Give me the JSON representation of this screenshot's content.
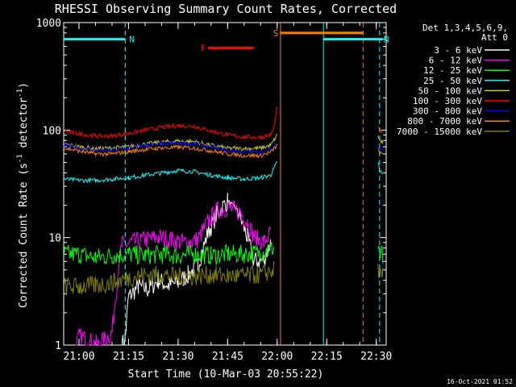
{
  "chart_data": {
    "type": "line",
    "title": "RHESSI Observing Summary Count Rates, Corrected",
    "ylabel": "Corrected Count Rate (s",
    "ylabel_sup1": "-1",
    "ylabel_mid": " detector",
    "ylabel_sup2": "-1",
    "ylabel_end": ")",
    "xlabel": "Start Time (10-Mar-03 20:55:22)",
    "date_stamp": "16-Oct-2021 01:52",
    "yscale": "log",
    "ylim": [
      1,
      1000
    ],
    "xlim": [
      "20:55:22",
      "22:33:00"
    ],
    "y_ticks": [
      {
        "value": 1,
        "label": "1"
      },
      {
        "value": 10,
        "label": "10"
      },
      {
        "value": 100,
        "label": "100"
      },
      {
        "value": 1000,
        "label": "1000"
      }
    ],
    "x_ticks": [
      {
        "value": "21:00",
        "label": "21:00"
      },
      {
        "value": "21:15",
        "label": "21:15"
      },
      {
        "value": "21:30",
        "label": "21:30"
      },
      {
        "value": "21:45",
        "label": "21:45"
      },
      {
        "value": "22:00",
        "label": "22:00"
      },
      {
        "value": "22:15",
        "label": "22:15"
      },
      {
        "value": "22:30",
        "label": "22:30"
      }
    ],
    "legend": {
      "header1": "Det 1,3,4,5,6,9,",
      "header2": "Att 0",
      "placement": "right"
    },
    "series": [
      {
        "name": "3 - 6 keV",
        "color": "#ffffff",
        "points": [
          [
            "21:13",
            1
          ],
          [
            "21:14",
            1.2
          ],
          [
            "21:15",
            2.8
          ],
          [
            "21:18",
            3.5
          ],
          [
            "21:21",
            3.3
          ],
          [
            "21:24",
            4.0
          ],
          [
            "21:27",
            3.6
          ],
          [
            "21:30",
            3.8
          ],
          [
            "21:33",
            4.5
          ],
          [
            "21:36",
            5.5
          ],
          [
            "21:39",
            11
          ],
          [
            "21:42",
            17
          ],
          [
            "21:45",
            22
          ],
          [
            "21:48",
            18
          ],
          [
            "21:51",
            10
          ],
          [
            "21:53",
            6
          ],
          [
            "21:56",
            6.2
          ],
          [
            "21:58",
            9
          ]
        ]
      },
      {
        "name": "6 - 12 keV",
        "color": "#ff00ff",
        "points": [
          [
            "20:59",
            1
          ],
          [
            "21:00",
            1.2
          ],
          [
            "21:06",
            1
          ],
          [
            "21:10",
            1.3
          ],
          [
            "21:12",
            5.5
          ],
          [
            "21:13",
            8.5
          ],
          [
            "21:16",
            9
          ],
          [
            "21:20",
            9.5
          ],
          [
            "21:24",
            10
          ],
          [
            "21:28",
            9.5
          ],
          [
            "21:32",
            9
          ],
          [
            "21:36",
            9.5
          ],
          [
            "21:39",
            14
          ],
          [
            "21:42",
            18
          ],
          [
            "21:45",
            19
          ],
          [
            "21:47",
            18
          ],
          [
            "21:49",
            17
          ],
          [
            "21:51",
            14
          ],
          [
            "21:53",
            10
          ],
          [
            "21:56",
            9
          ],
          [
            "21:58",
            11
          ]
        ]
      },
      {
        "name": "12 - 25 keV",
        "color": "#00ff00",
        "points": [
          [
            "20:55:30",
            7
          ],
          [
            "21:00",
            7
          ],
          [
            "21:05",
            6.5
          ],
          [
            "21:10",
            6.8
          ],
          [
            "21:15",
            7
          ],
          [
            "21:20",
            6.8
          ],
          [
            "21:25",
            7
          ],
          [
            "21:30",
            6.8
          ],
          [
            "21:35",
            7
          ],
          [
            "21:40",
            6.8
          ],
          [
            "21:45",
            7
          ],
          [
            "21:50",
            7
          ],
          [
            "21:55",
            7.2
          ],
          [
            "21:59",
            8
          ]
        ]
      },
      {
        "name": "25 - 50 keV",
        "color": "#00ffff",
        "points": [
          [
            "20:55:30",
            35
          ],
          [
            "21:00",
            34
          ],
          [
            "21:05",
            34
          ],
          [
            "21:10",
            35
          ],
          [
            "21:15",
            36
          ],
          [
            "21:20",
            38
          ],
          [
            "21:25",
            40
          ],
          [
            "21:30",
            42
          ],
          [
            "21:35",
            41
          ],
          [
            "21:40",
            38
          ],
          [
            "21:45",
            36
          ],
          [
            "21:50",
            35
          ],
          [
            "21:55",
            36
          ],
          [
            "21:58",
            38
          ],
          [
            "22:00",
            50
          ]
        ]
      },
      {
        "name": "50 - 100 keV",
        "color": "#d0d000",
        "points": [
          [
            "20:55:30",
            74
          ],
          [
            "21:00",
            70
          ],
          [
            "21:05",
            67
          ],
          [
            "21:10",
            68
          ],
          [
            "21:15",
            70
          ],
          [
            "21:20",
            74
          ],
          [
            "21:25",
            77
          ],
          [
            "21:30",
            79
          ],
          [
            "21:35",
            78
          ],
          [
            "21:40",
            72
          ],
          [
            "21:45",
            68
          ],
          [
            "21:50",
            67
          ],
          [
            "21:55",
            68
          ],
          [
            "21:58",
            72
          ],
          [
            "22:00",
            90
          ]
        ]
      },
      {
        "name": "100 - 300 keV",
        "color": "#ff0000",
        "points": [
          [
            "20:55:30",
            98
          ],
          [
            "21:00",
            92
          ],
          [
            "21:05",
            88
          ],
          [
            "21:10",
            88
          ],
          [
            "21:15",
            93
          ],
          [
            "21:20",
            100
          ],
          [
            "21:25",
            106
          ],
          [
            "21:30",
            110
          ],
          [
            "21:35",
            108
          ],
          [
            "21:40",
            98
          ],
          [
            "21:45",
            90
          ],
          [
            "21:50",
            86
          ],
          [
            "21:55",
            86
          ],
          [
            "21:58",
            90
          ],
          [
            "21:59",
            105
          ],
          [
            "22:00",
            160
          ]
        ]
      },
      {
        "name": "300 - 800 keV",
        "color": "#0000ff",
        "points": [
          [
            "20:55:30",
            72
          ],
          [
            "21:00",
            68
          ],
          [
            "21:05",
            65
          ],
          [
            "21:10",
            65
          ],
          [
            "21:15",
            68
          ],
          [
            "21:20",
            72
          ],
          [
            "21:25",
            74
          ],
          [
            "21:30",
            76
          ],
          [
            "21:35",
            75
          ],
          [
            "21:40",
            70
          ],
          [
            "21:45",
            65
          ],
          [
            "21:50",
            63
          ],
          [
            "21:55",
            63
          ],
          [
            "21:58",
            66
          ],
          [
            "22:00",
            75
          ]
        ]
      },
      {
        "name": "800 - 7000 keV",
        "color": "#ff8000",
        "points": [
          [
            "20:55:30",
            68
          ],
          [
            "21:00",
            64
          ],
          [
            "21:05",
            60
          ],
          [
            "21:10",
            60
          ],
          [
            "21:15",
            63
          ],
          [
            "21:20",
            66
          ],
          [
            "21:25",
            68
          ],
          [
            "21:30",
            69
          ],
          [
            "21:35",
            68
          ],
          [
            "21:40",
            64
          ],
          [
            "21:45",
            60
          ],
          [
            "21:50",
            58
          ],
          [
            "21:55",
            58
          ],
          [
            "21:58",
            62
          ],
          [
            "22:00",
            72
          ]
        ]
      },
      {
        "name": "7000 - 15000 keV",
        "color": "#808000",
        "points": [
          [
            "20:55:30",
            3.5
          ],
          [
            "21:00",
            3.5
          ],
          [
            "21:05",
            3.6
          ],
          [
            "21:10",
            3.8
          ],
          [
            "21:15",
            4.2
          ],
          [
            "21:20",
            4.5
          ],
          [
            "21:25",
            4.5
          ],
          [
            "21:30",
            4.3
          ],
          [
            "21:35",
            4.4
          ],
          [
            "21:40",
            4.5
          ],
          [
            "21:45",
            4.4
          ],
          [
            "21:50",
            4.4
          ],
          [
            "21:55",
            4.5
          ],
          [
            "21:59",
            5
          ]
        ]
      }
    ],
    "tail_series": [
      {
        "color": "#ff0000",
        "points": [
          [
            "22:30:30",
            110
          ],
          [
            "22:31",
            100
          ],
          [
            "22:32",
            95
          ]
        ]
      },
      {
        "color": "#d0d000",
        "points": [
          [
            "22:30:30",
            85
          ],
          [
            "22:31",
            80
          ],
          [
            "22:32",
            75
          ]
        ]
      },
      {
        "color": "#0000ff",
        "points": [
          [
            "22:30:30",
            72
          ],
          [
            "22:31",
            68
          ],
          [
            "22:32",
            65
          ]
        ]
      },
      {
        "color": "#ff8000",
        "points": [
          [
            "22:30:30",
            68
          ],
          [
            "22:31",
            62
          ],
          [
            "22:32",
            58
          ]
        ]
      },
      {
        "color": "#00ffff",
        "points": [
          [
            "22:30:30",
            50
          ],
          [
            "22:31",
            42
          ],
          [
            "22:32",
            38
          ]
        ]
      },
      {
        "color": "#00ff00",
        "points": [
          [
            "22:30:30",
            7.5
          ],
          [
            "22:31",
            7
          ],
          [
            "22:32",
            7
          ]
        ]
      },
      {
        "color": "#808000",
        "points": [
          [
            "22:30:30",
            4.8
          ],
          [
            "22:31",
            4.5
          ],
          [
            "22:32",
            4.5
          ]
        ]
      }
    ],
    "markers": [
      {
        "label": "N",
        "color": "#00ffff",
        "y": 700,
        "x_start": "20:55:22",
        "x_end": "21:14",
        "dash_line": "21:14"
      },
      {
        "label": "N",
        "color": "#00ffff",
        "y": 700,
        "x_start": "22:14",
        "x_end": "22:32",
        "dash_line": "22:31",
        "solid_line": "22:14"
      },
      {
        "label": "F",
        "color": "#ff0000",
        "y": 580,
        "x_start": "21:39",
        "x_end": "21:53"
      },
      {
        "label": "S",
        "color": "#ff8000",
        "y": 800,
        "x_start": "22:01",
        "x_end": "22:26",
        "dash_line": "22:26",
        "solid_line": "22:01"
      }
    ]
  }
}
